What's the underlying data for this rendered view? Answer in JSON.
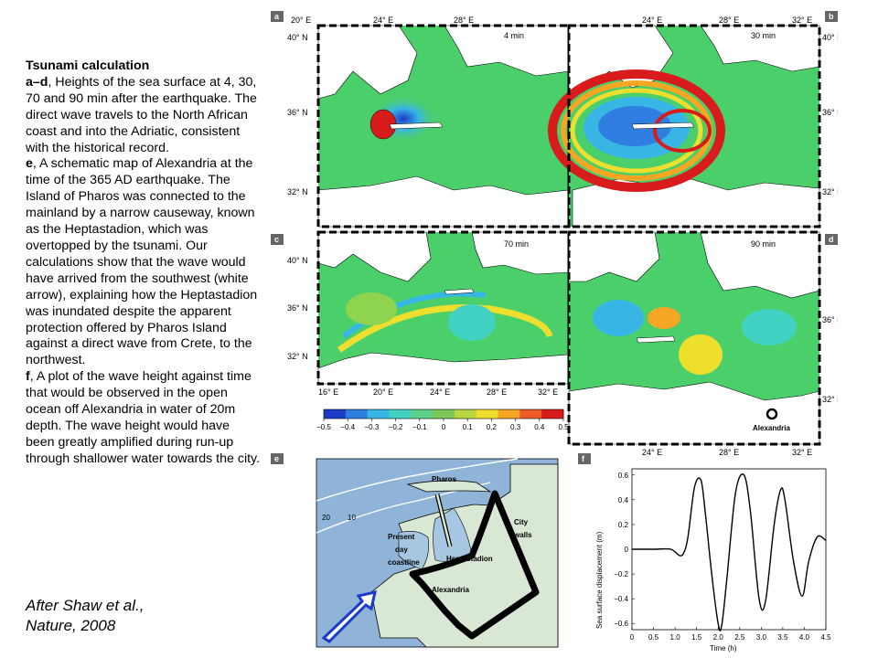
{
  "caption": {
    "title": "Tsunami calculation",
    "para_ad_label": "a–d",
    "para_ad_text": ", Heights of the sea surface at 4, 30, 70 and 90 min after the earthquake. The direct wave travels to the North African coast and into the Adriatic, consistent with the historical record.",
    "para_e_label": "e",
    "para_e_text": ", A schematic map of Alexandria at the time of the 365 AD earthquake. The Island of Pharos was connected to the mainland by a narrow causeway, known as the Heptastadion, which was overtopped by the tsunami. Our calculations show that the wave would have arrived from the southwest (white arrow), explaining how the Heptastadion was inundated despite the apparent protection offered by Pharos Island against a direct wave from Crete, to the northwest.",
    "para_f_label": "f",
    "para_f_text": ", A plot of the wave height against time that would be observed in the open ocean off Alexandria in water of 20m depth. The wave height would have been greatly amplified during run-up through shallower water towards the city."
  },
  "citation": {
    "line1": "After Shaw et al.,",
    "line2": "Nature, 2008"
  },
  "panels": {
    "a": {
      "badge": "a",
      "time": "4 min"
    },
    "b": {
      "badge": "b",
      "time": "30 min"
    },
    "c": {
      "badge": "c",
      "time": "70 min"
    },
    "d": {
      "badge": "d",
      "time": "90 min",
      "place_label": "Alexandria"
    },
    "e": {
      "badge": "e"
    },
    "f": {
      "badge": "f"
    }
  },
  "axes": {
    "lon_top": [
      "20° E",
      "24° E",
      "28° E",
      "32° E"
    ],
    "lon_bottom_c": [
      "16° E",
      "20° E",
      "24° E",
      "28° E",
      "32° E"
    ],
    "lon_bottom_d": [
      "24° E",
      "28° E",
      "32° E"
    ],
    "lat_a": [
      "40° N",
      "36° N",
      "32° N"
    ],
    "lat_b": [
      "40° N",
      "36° N",
      "32° N"
    ],
    "lat_c": [
      "40° N",
      "36° N",
      "32° N"
    ],
    "lat_d": [
      "36° N",
      "32° N"
    ]
  },
  "colorbar": {
    "ticks": [
      "−0.5",
      "−0.4",
      "−0.3",
      "−0.2",
      "−0.1",
      "0",
      "0.1",
      "0.2",
      "0.3",
      "0.4",
      "0.5"
    ],
    "colors": [
      "#1a3cc8",
      "#2f7fe0",
      "#37b6e6",
      "#42d2c4",
      "#5fd28a",
      "#7cc95a",
      "#b8d640",
      "#eedf2e",
      "#f5a623",
      "#ee5a24",
      "#d81b1b"
    ]
  },
  "map_e": {
    "labels": {
      "pharos": "Pharos",
      "depth_20": "20",
      "depth_10": "10",
      "present_day": [
        "Present",
        "day",
        "coastline"
      ],
      "heptastadion": "Heptastadion",
      "alexandria": "Alexandria",
      "city_walls": [
        "City",
        "walls"
      ]
    },
    "colors": {
      "sea": "#8fb4d8",
      "land": "#d8e8d4",
      "harbour": "#a7c6e2"
    }
  },
  "chart_data": {
    "type": "line",
    "title": "",
    "xlabel": "Time (h)",
    "ylabel": "Sea surface displacement (m)",
    "xlim": [
      0,
      4.5
    ],
    "ylim": [
      -0.65,
      0.65
    ],
    "xticks": [
      "0",
      "0.5",
      "1.0",
      "1.5",
      "2.0",
      "2.5",
      "3.0",
      "3.5",
      "4.0",
      "4.5"
    ],
    "yticks": [
      "0.6",
      "0.4",
      "0.2",
      "0",
      "−0.2",
      "−0.4",
      "−0.6"
    ],
    "series": [
      {
        "x": [
          0,
          0.5,
          0.9,
          1.1,
          1.2,
          1.3,
          1.45,
          1.6,
          1.7,
          1.85,
          2.0,
          2.08,
          2.2,
          2.4,
          2.6,
          2.75,
          2.95,
          3.1,
          3.3,
          3.45,
          3.55,
          3.75,
          3.95,
          4.1,
          4.3,
          4.5
        ],
        "y": [
          0,
          0,
          0,
          -0.05,
          -0.03,
          0.1,
          0.5,
          0.56,
          0.3,
          -0.2,
          -0.6,
          -0.62,
          -0.25,
          0.45,
          0.6,
          0.3,
          -0.4,
          -0.42,
          0.2,
          0.48,
          0.4,
          -0.1,
          -0.38,
          -0.1,
          0.1,
          0.07
        ]
      }
    ]
  }
}
